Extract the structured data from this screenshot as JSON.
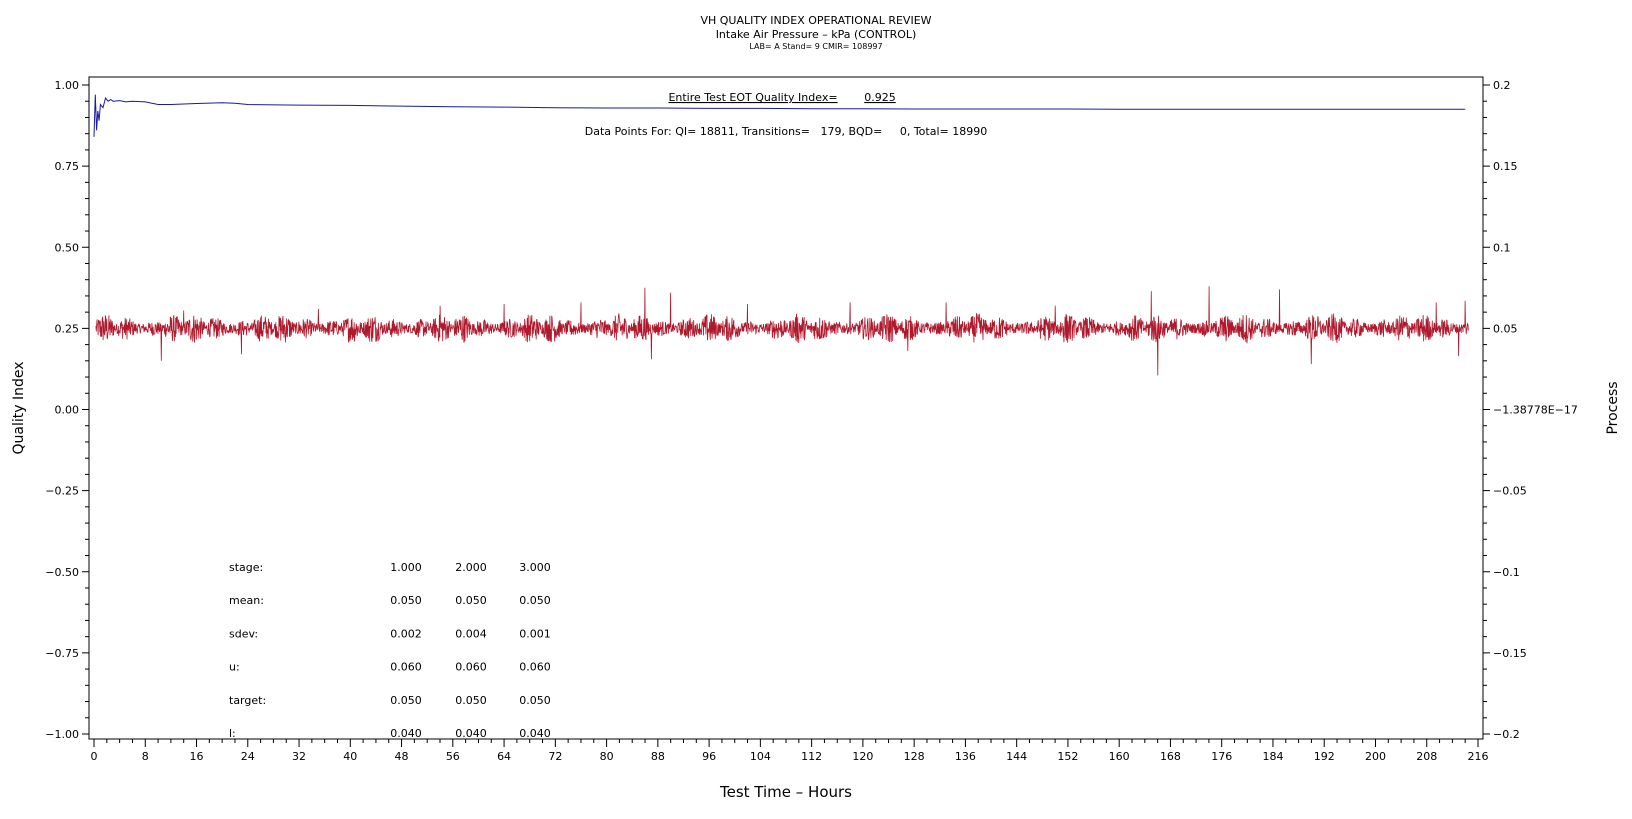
{
  "chart_data": {
    "type": "line",
    "title": "VH QUALITY INDEX OPERATIONAL REVIEW",
    "subtitle": "Intake Air Pressure – kPa (CONTROL)",
    "subtitle2": "LAB= A Stand= 9 CMIR= 108997",
    "xlabel": "Test Time – Hours",
    "ylabel_left": "Quality Index",
    "ylabel_right": "Process",
    "xlim": [
      0,
      216
    ],
    "ylim_left": [
      -1.0,
      1.0
    ],
    "ylim_right": [
      -0.2,
      0.2
    ],
    "x_ticks": [
      "0",
      "8",
      "16",
      "24",
      "32",
      "40",
      "48",
      "56",
      "64",
      "72",
      "80",
      "88",
      "96",
      "104",
      "112",
      "120",
      "128",
      "136",
      "144",
      "152",
      "160",
      "168",
      "176",
      "184",
      "192",
      "200",
      "208",
      "216"
    ],
    "y_ticks_left": [
      "1.00",
      "0.75",
      "0.50",
      "0.25",
      "0.00",
      "−0.25",
      "−0.50",
      "−0.75",
      "−1.00"
    ],
    "y_ticks_right": [
      "0.2",
      "0.15",
      "0.1",
      "0.05",
      "−1.38778E−17",
      "−0.05",
      "−0.1",
      "−0.15",
      "−0.2"
    ],
    "grid": false,
    "annotations": {
      "quality_index_label": "Entire Test EOT Quality Index=",
      "quality_index_value": "0.925",
      "data_points_text": "Data Points For: QI= 18811, Transitions=   179, BQD=     0, Total= 18990"
    },
    "stats_table": {
      "rows": [
        {
          "label": "stage:",
          "values": [
            "1.000",
            "2.000",
            "3.000"
          ]
        },
        {
          "label": "mean:",
          "values": [
            "0.050",
            "0.050",
            "0.050"
          ]
        },
        {
          "label": "sdev:",
          "values": [
            "0.002",
            "0.004",
            "0.001"
          ]
        },
        {
          "label": "u:",
          "values": [
            "0.060",
            "0.060",
            "0.060"
          ]
        },
        {
          "label": "target:",
          "values": [
            "0.050",
            "0.050",
            "0.050"
          ]
        },
        {
          "label": "l:",
          "values": [
            "0.040",
            "0.040",
            "0.040"
          ]
        }
      ]
    },
    "series": [
      {
        "axis": "left",
        "color": "#1a1aa0",
        "x": [
          0.0,
          0.2,
          0.4,
          0.6,
          0.8,
          1.0,
          1.4,
          1.8,
          2.2,
          2.6,
          3.0,
          4.0,
          5.0,
          6.0,
          8.0,
          10.0,
          12.0,
          16.0,
          20.0,
          22.0,
          24.0,
          32.0,
          40.0,
          48.0,
          56.0,
          64.0,
          72.0,
          80.0,
          88.0,
          96.0,
          104.0,
          112.0,
          120.0,
          128.0,
          136.0,
          144.0,
          152.0,
          160.0,
          168.0,
          176.0,
          184.0,
          192.0,
          200.0,
          208.0,
          214.0
        ],
        "values": [
          0.84,
          0.97,
          0.86,
          0.92,
          0.89,
          0.94,
          0.93,
          0.96,
          0.95,
          0.955,
          0.95,
          0.952,
          0.948,
          0.95,
          0.948,
          0.94,
          0.94,
          0.943,
          0.945,
          0.944,
          0.94,
          0.938,
          0.937,
          0.935,
          0.933,
          0.932,
          0.93,
          0.929,
          0.929,
          0.928,
          0.928,
          0.927,
          0.927,
          0.926,
          0.926,
          0.926,
          0.926,
          0.925,
          0.925,
          0.925,
          0.925,
          0.925,
          0.925,
          0.925,
          0.925
        ]
      },
      {
        "axis": "right",
        "color": "#b0182c",
        "x_range": [
          0.3,
          214.5
        ],
        "center": 0.05,
        "sdev": 0.003,
        "spikes": [
          {
            "x": 10.5,
            "value": 0.03
          },
          {
            "x": 14.0,
            "value": 0.061
          },
          {
            "x": 23.0,
            "value": 0.034
          },
          {
            "x": 35.0,
            "value": 0.062
          },
          {
            "x": 54.0,
            "value": 0.064
          },
          {
            "x": 64.0,
            "value": 0.065
          },
          {
            "x": 76.0,
            "value": 0.066
          },
          {
            "x": 86.0,
            "value": 0.075
          },
          {
            "x": 87.0,
            "value": 0.031
          },
          {
            "x": 90.0,
            "value": 0.072
          },
          {
            "x": 102.0,
            "value": 0.065
          },
          {
            "x": 118.0,
            "value": 0.066
          },
          {
            "x": 127.0,
            "value": 0.036
          },
          {
            "x": 133.0,
            "value": 0.066
          },
          {
            "x": 150.0,
            "value": 0.064
          },
          {
            "x": 165.0,
            "value": 0.073
          },
          {
            "x": 166.0,
            "value": 0.021
          },
          {
            "x": 174.0,
            "value": 0.076
          },
          {
            "x": 185.0,
            "value": 0.074
          },
          {
            "x": 190.0,
            "value": 0.028
          },
          {
            "x": 209.5,
            "value": 0.066
          },
          {
            "x": 213.0,
            "value": 0.033
          },
          {
            "x": 214.0,
            "value": 0.067
          }
        ]
      }
    ]
  }
}
